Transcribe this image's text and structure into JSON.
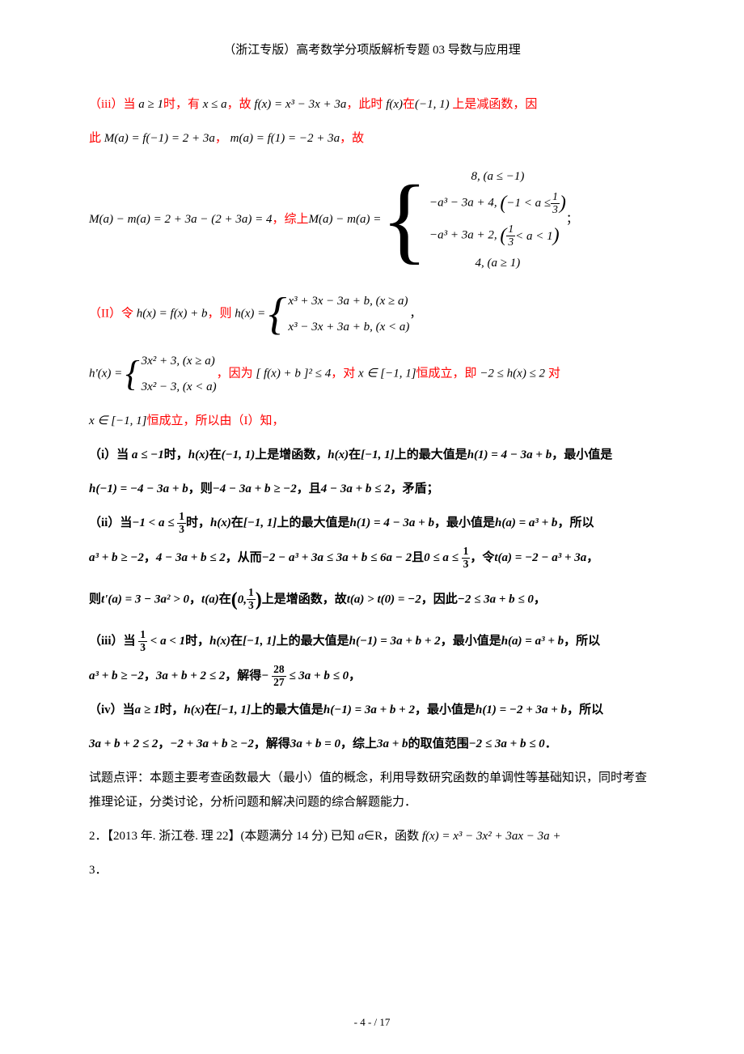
{
  "document": {
    "title_header": "（浙江专版）高考数学分项版解析专题 03 导数与应用理",
    "page_footer": "- 4 -  / 17",
    "colors": {
      "text": "#000000",
      "highlight": "#ff0000",
      "background": "#ffffff"
    },
    "typography": {
      "body_fontsize": 15,
      "title_fontsize": 15,
      "footer_fontsize": 13,
      "line_height": 1.6
    },
    "lines": {
      "l1_pre": "（iii）当 ",
      "l1_cond": "a ≥ 1",
      "l1_mid1": "时，有 ",
      "l1_xle": "x ≤ a",
      "l1_mid2": "，故 ",
      "l1_fx": "f(x) = x³ − 3x + 3a",
      "l1_mid3": "，此时 ",
      "l1_fxexpr": "f(x)",
      "l1_mid4": "在",
      "l1_interval": "(−1, 1)",
      "l1_tail": " 上是减函数，因",
      "l2_pre": "此 ",
      "l2_eq1": "M(a) = f(−1) = 2 + 3a",
      "l2_sep": "，",
      "l2_eq2": "m(a) = f(1) = −2 + 3a",
      "l2_tail": "，故",
      "big_left": "M(a) − m(a) = 2 + 3a − (2 + 3a) = 4",
      "big_mid": "，综上 ",
      "big_label": "M(a) − m(a) = ",
      "piece1": "8, (a ≤ −1)",
      "piece2a": "−a³ − 3a + 4, ",
      "piece2b_l": "−1 < a ≤ ",
      "piece2b_frac_n": "1",
      "piece2b_frac_d": "3",
      "piece3a": "−a³ + 3a + 2, ",
      "piece3b_frac_n": "1",
      "piece3b_frac_d": "3",
      "piece3b_r": " < a < 1",
      "piece4": "4, (a ≥ 1)",
      "big_tail": "；",
      "ii_pre": "（II）令 ",
      "ii_hx": "h(x) = f(x) + b",
      "ii_mid": "，则 ",
      "ii_hx2": "h(x) = ",
      "ii_case1": "x³ + 3x − 3a + b, (x ≥ a)",
      "ii_case2": "x³ − 3x + 3a + b, (x < a)",
      "ii_tail": "，",
      "hp_lhs": "h'(x) = ",
      "hp_case1": "3x² + 3, (x ≥ a)",
      "hp_case2": "3x² − 3, (x < a)",
      "hp_mid1": "，因为 ",
      "hp_ineq": "[ f(x) + b ]² ≤ 4",
      "hp_mid2": "，对 ",
      "hp_xin": "x ∈ [−1, 1]",
      "hp_cheng": "恒成立，即 ",
      "hp_range": "−2 ≤ h(x) ≤ 2 ",
      "hp_dui": "对",
      "xin2": "x ∈ [−1, 1]",
      "xin2_tail": "恒成立，所以由（I）知，",
      "bi_1a": "（i）当 ",
      "bi_1b": "a ≤ −1",
      "bi_1c": "时，",
      "bi_1d": "h(x)",
      "bi_1e": "在",
      "bi_1f": "(−1, 1)",
      "bi_1g": "上是增函数，",
      "bi_1h": "h(x)",
      "bi_1i": "在",
      "bi_1j": "[−1, 1]",
      "bi_1k": "上的最大值是",
      "bi_1l": "h(1) = 4 − 3a + b",
      "bi_1m": "，最小值是",
      "bi_2a": "h(−1) = −4 − 3a + b",
      "bi_2b": "，则",
      "bi_2c": "−4 − 3a + b ≥ −2",
      "bi_2d": "，且",
      "bi_2e": "4 − 3a + b ≤ 2",
      "bi_2f": "，矛盾；",
      "bii_1a": "（ii）当",
      "bii_1b_l": "−1 < a ≤ ",
      "bii_1b_n": "1",
      "bii_1b_d": "3",
      "bii_1c": "时，",
      "bii_1d": "h(x)",
      "bii_1e": "在",
      "bii_1f": "[−1, 1]",
      "bii_1g": "上的最大值是",
      "bii_1h": "h(1) = 4 − 3a + b",
      "bii_1i": "，最小值是",
      "bii_1j": "h(a) = a³ + b",
      "bii_1k": "，所以",
      "bii_2a": "a³ + b ≥ −2",
      "bii_2b": "，",
      "bii_2c": "4 − 3a + b ≤ 2",
      "bii_2d": "，从而",
      "bii_2e": "−2 − a³ + 3a ≤ 3a + b ≤ 6a − 2",
      "bii_2f": "且",
      "bii_2g_l": "0 ≤ a ≤ ",
      "bii_2g_n": "1",
      "bii_2g_d": "3",
      "bii_2h": "，令",
      "bii_2i": "t(a) = −2 − a³ + 3a",
      "bii_2j": "，",
      "bii_3a": "则",
      "bii_3b": "t'(a) = 3 − 3a² > 0",
      "bii_3c": "，",
      "bii_3d": "t(a)",
      "bii_3e": "在",
      "bii_3f_l": "0, ",
      "bii_3f_n": "1",
      "bii_3f_d": "3",
      "bii_3g": "上是增函数，故",
      "bii_3h": "t(a) > t(0) = −2",
      "bii_3i": "，因此",
      "bii_3j": "−2 ≤ 3a + b ≤ 0",
      "bii_3k": "，",
      "biii_1a": "（iii）当 ",
      "biii_1b_n": "1",
      "biii_1b_d": "3",
      "biii_1b_r": " < a < 1",
      "biii_1c": "时，",
      "biii_1d": "h(x)",
      "biii_1e": "在",
      "biii_1f": "[−1, 1]",
      "biii_1g": "上的最大值是",
      "biii_1h": "h(−1) = 3a + b + 2",
      "biii_1i": "，最小值是",
      "biii_1j": "h(a) = a³ + b",
      "biii_1k": "，所以",
      "biii_2a": "a³ + b ≥ −2",
      "biii_2b": "，",
      "biii_2c": "3a + b + 2 ≤ 2",
      "biii_2d": "，解得",
      "biii_2e_l": "− ",
      "biii_2e_n": "28",
      "biii_2e_d": "27",
      "biii_2e_r": " ≤ 3a + b ≤ 0",
      "biii_2f": "，",
      "biv_1a": "（iv）当",
      "biv_1b": "a ≥ 1",
      "biv_1c": "时，",
      "biv_1d": "h(x)",
      "biv_1e": "在",
      "biv_1f": "[−1, 1]",
      "biv_1g": "上的最大值是",
      "biv_1h": "h(−1) = 3a + b + 2",
      "biv_1i": "，最小值是",
      "biv_1j": "h(1) = −2 + 3a + b",
      "biv_1k": "，所以",
      "biv_2a": "3a + b + 2 ≤ 2",
      "biv_2b": "，",
      "biv_2c": "−2 + 3a + b ≥ −2",
      "biv_2d": "，解得",
      "biv_2e": "3a + b = 0",
      "biv_2f": "，综上",
      "biv_2g": "3a + b",
      "biv_2h": "的取值范围",
      "biv_2i": "−2 ≤ 3a + b ≤ 0",
      "biv_2j": "．",
      "comment": "试题点评：本题主要考查函数最大（最小）值的概念，利用导数研究函数的单调性等基础知识，同时考查推理论证，分类讨论，分析问题和解决问题的综合解题能力．",
      "q2a": "2．【2013 年. 浙江卷. 理 22】(本题满分 14 分) 已知 ",
      "q2b": "a",
      "q2c": "∈R，函数 ",
      "q2d": "f(x) = x³ − 3x² + 3ax − 3a +",
      "q2e": "3．"
    }
  }
}
